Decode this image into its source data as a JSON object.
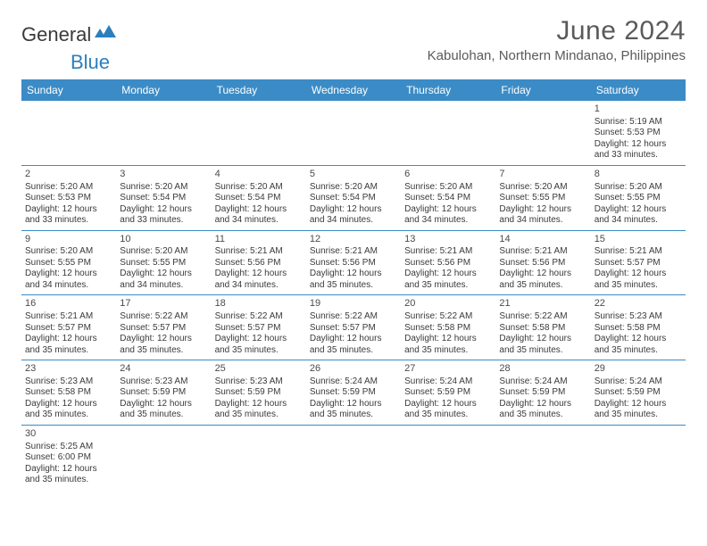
{
  "logo": {
    "text1": "General",
    "text2": "Blue"
  },
  "title": "June 2024",
  "location": "Kabulohan, Northern Mindanao, Philippines",
  "colors": {
    "header_bg": "#3b8bc6",
    "header_text": "#ffffff",
    "border": "#3b8bc6",
    "text": "#3a3a3a",
    "title_text": "#5a5a5a",
    "logo_accent": "#2b7fbd"
  },
  "weekdays": [
    "Sunday",
    "Monday",
    "Tuesday",
    "Wednesday",
    "Thursday",
    "Friday",
    "Saturday"
  ],
  "weeks": [
    [
      null,
      null,
      null,
      null,
      null,
      null,
      {
        "n": "1",
        "sr": "Sunrise: 5:19 AM",
        "ss": "Sunset: 5:53 PM",
        "d1": "Daylight: 12 hours",
        "d2": "and 33 minutes."
      }
    ],
    [
      {
        "n": "2",
        "sr": "Sunrise: 5:20 AM",
        "ss": "Sunset: 5:53 PM",
        "d1": "Daylight: 12 hours",
        "d2": "and 33 minutes."
      },
      {
        "n": "3",
        "sr": "Sunrise: 5:20 AM",
        "ss": "Sunset: 5:54 PM",
        "d1": "Daylight: 12 hours",
        "d2": "and 33 minutes."
      },
      {
        "n": "4",
        "sr": "Sunrise: 5:20 AM",
        "ss": "Sunset: 5:54 PM",
        "d1": "Daylight: 12 hours",
        "d2": "and 34 minutes."
      },
      {
        "n": "5",
        "sr": "Sunrise: 5:20 AM",
        "ss": "Sunset: 5:54 PM",
        "d1": "Daylight: 12 hours",
        "d2": "and 34 minutes."
      },
      {
        "n": "6",
        "sr": "Sunrise: 5:20 AM",
        "ss": "Sunset: 5:54 PM",
        "d1": "Daylight: 12 hours",
        "d2": "and 34 minutes."
      },
      {
        "n": "7",
        "sr": "Sunrise: 5:20 AM",
        "ss": "Sunset: 5:55 PM",
        "d1": "Daylight: 12 hours",
        "d2": "and 34 minutes."
      },
      {
        "n": "8",
        "sr": "Sunrise: 5:20 AM",
        "ss": "Sunset: 5:55 PM",
        "d1": "Daylight: 12 hours",
        "d2": "and 34 minutes."
      }
    ],
    [
      {
        "n": "9",
        "sr": "Sunrise: 5:20 AM",
        "ss": "Sunset: 5:55 PM",
        "d1": "Daylight: 12 hours",
        "d2": "and 34 minutes."
      },
      {
        "n": "10",
        "sr": "Sunrise: 5:20 AM",
        "ss": "Sunset: 5:55 PM",
        "d1": "Daylight: 12 hours",
        "d2": "and 34 minutes."
      },
      {
        "n": "11",
        "sr": "Sunrise: 5:21 AM",
        "ss": "Sunset: 5:56 PM",
        "d1": "Daylight: 12 hours",
        "d2": "and 34 minutes."
      },
      {
        "n": "12",
        "sr": "Sunrise: 5:21 AM",
        "ss": "Sunset: 5:56 PM",
        "d1": "Daylight: 12 hours",
        "d2": "and 35 minutes."
      },
      {
        "n": "13",
        "sr": "Sunrise: 5:21 AM",
        "ss": "Sunset: 5:56 PM",
        "d1": "Daylight: 12 hours",
        "d2": "and 35 minutes."
      },
      {
        "n": "14",
        "sr": "Sunrise: 5:21 AM",
        "ss": "Sunset: 5:56 PM",
        "d1": "Daylight: 12 hours",
        "d2": "and 35 minutes."
      },
      {
        "n": "15",
        "sr": "Sunrise: 5:21 AM",
        "ss": "Sunset: 5:57 PM",
        "d1": "Daylight: 12 hours",
        "d2": "and 35 minutes."
      }
    ],
    [
      {
        "n": "16",
        "sr": "Sunrise: 5:21 AM",
        "ss": "Sunset: 5:57 PM",
        "d1": "Daylight: 12 hours",
        "d2": "and 35 minutes."
      },
      {
        "n": "17",
        "sr": "Sunrise: 5:22 AM",
        "ss": "Sunset: 5:57 PM",
        "d1": "Daylight: 12 hours",
        "d2": "and 35 minutes."
      },
      {
        "n": "18",
        "sr": "Sunrise: 5:22 AM",
        "ss": "Sunset: 5:57 PM",
        "d1": "Daylight: 12 hours",
        "d2": "and 35 minutes."
      },
      {
        "n": "19",
        "sr": "Sunrise: 5:22 AM",
        "ss": "Sunset: 5:57 PM",
        "d1": "Daylight: 12 hours",
        "d2": "and 35 minutes."
      },
      {
        "n": "20",
        "sr": "Sunrise: 5:22 AM",
        "ss": "Sunset: 5:58 PM",
        "d1": "Daylight: 12 hours",
        "d2": "and 35 minutes."
      },
      {
        "n": "21",
        "sr": "Sunrise: 5:22 AM",
        "ss": "Sunset: 5:58 PM",
        "d1": "Daylight: 12 hours",
        "d2": "and 35 minutes."
      },
      {
        "n": "22",
        "sr": "Sunrise: 5:23 AM",
        "ss": "Sunset: 5:58 PM",
        "d1": "Daylight: 12 hours",
        "d2": "and 35 minutes."
      }
    ],
    [
      {
        "n": "23",
        "sr": "Sunrise: 5:23 AM",
        "ss": "Sunset: 5:58 PM",
        "d1": "Daylight: 12 hours",
        "d2": "and 35 minutes."
      },
      {
        "n": "24",
        "sr": "Sunrise: 5:23 AM",
        "ss": "Sunset: 5:59 PM",
        "d1": "Daylight: 12 hours",
        "d2": "and 35 minutes."
      },
      {
        "n": "25",
        "sr": "Sunrise: 5:23 AM",
        "ss": "Sunset: 5:59 PM",
        "d1": "Daylight: 12 hours",
        "d2": "and 35 minutes."
      },
      {
        "n": "26",
        "sr": "Sunrise: 5:24 AM",
        "ss": "Sunset: 5:59 PM",
        "d1": "Daylight: 12 hours",
        "d2": "and 35 minutes."
      },
      {
        "n": "27",
        "sr": "Sunrise: 5:24 AM",
        "ss": "Sunset: 5:59 PM",
        "d1": "Daylight: 12 hours",
        "d2": "and 35 minutes."
      },
      {
        "n": "28",
        "sr": "Sunrise: 5:24 AM",
        "ss": "Sunset: 5:59 PM",
        "d1": "Daylight: 12 hours",
        "d2": "and 35 minutes."
      },
      {
        "n": "29",
        "sr": "Sunrise: 5:24 AM",
        "ss": "Sunset: 5:59 PM",
        "d1": "Daylight: 12 hours",
        "d2": "and 35 minutes."
      }
    ],
    [
      {
        "n": "30",
        "sr": "Sunrise: 5:25 AM",
        "ss": "Sunset: 6:00 PM",
        "d1": "Daylight: 12 hours",
        "d2": "and 35 minutes."
      },
      null,
      null,
      null,
      null,
      null,
      null
    ]
  ]
}
